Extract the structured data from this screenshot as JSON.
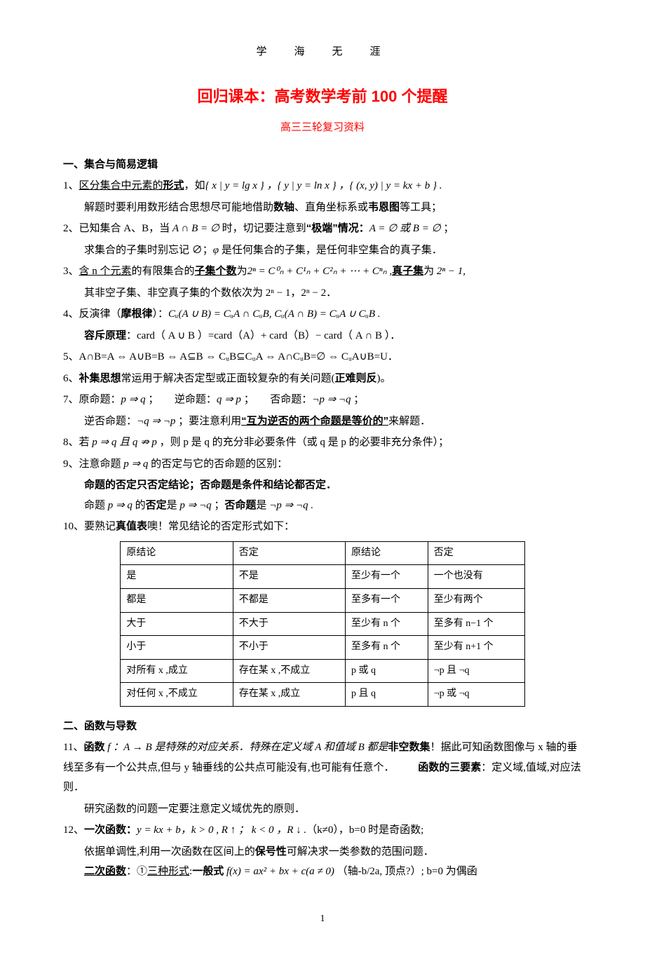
{
  "header_top": "学　海　无　涯",
  "title_prefix": "回归课本：高考数学考前 ",
  "title_num": "100",
  "title_suffix": " 个提醒",
  "subtitle": "高三三轮复习资料",
  "sec1": "一、集合与简易逻辑",
  "p1a": "1、",
  "p1b": "区分集合中元素的",
  "p1c": "形式",
  "p1d": "，如",
  "p1e": "{ x | y = lg x } ，{ y | y = ln x } ，{ (x, y) | y = kx + b } .",
  "p1f": "解题时要利用数形结合思想尽可能地借助",
  "p1g": "数轴",
  "p1h": "、直角坐标系或",
  "p1i": "韦恩图",
  "p1j": "等工具；",
  "p2a": "2、已知集合 A、B，当 ",
  "p2b": "A ∩ B = ∅",
  "p2c": " 时，切记要注意到",
  "p2d": "“极端”情况：",
  "p2e": "A = ∅ 或 B = ∅ ",
  "p2f": "；",
  "p2g": "求集合的子集时别忘记 ∅；",
  "p2h": "φ",
  "p2i": " 是任何集合的子集，是任何非空集合的真子集．",
  "p3a": "3、",
  "p3b": "含 n 个元素",
  "p3c": "的有限集合的",
  "p3d": "子集个数",
  "p3e": "为",
  "p3f": "2ⁿ = C⁰ₙ + C¹ₙ + C²ₙ + ⋯ + Cⁿₙ ,",
  "p3g": "真子集",
  "p3h": "为",
  "p3i": " 2ⁿ − 1,",
  "p3j": "其非空子集、非空真子集的个数依次为 2ⁿ − 1，2ⁿ − 2．",
  "p4a": "4、反演律（",
  "p4b": "摩根律",
  "p4c": "）：",
  "p4d": "Cᵤ(A ∪ B) = CᵤA ∩ CᵤB, Cᵤ(A ∩ B) = CᵤA ∪ CᵤB .",
  "p4e": "容斥原理",
  "p4f": "：card（ A ∪ B ）=card（A）+ card（B）− card（ A ∩ B ）．",
  "p5": "5、A∩B=A ⇔ A∪B=B ⇔ A⊆B ⇔ CᵤB⊆CᵤA ⇔ A∩CᵤB=∅ ⇔ CᵤA∪B=U．",
  "p6a": "6、",
  "p6b": "补集思想",
  "p6c": "常运用于解决否定型或正面较复杂的有关问题(",
  "p6d": "正难则反",
  "p6e": ")。",
  "p7a": "7、原命题：",
  "p7b": "p ⇒ q",
  "p7c": " ；　　逆命题：",
  "p7d": "q ⇒ p",
  "p7e": " ；　　否命题：",
  "p7f": "¬p ⇒ ¬q",
  "p7g": " ；",
  "p7h": "逆否命题：",
  "p7i": "¬q ⇒ ¬p",
  "p7j": " ；要注意利用",
  "p7k": "“互为逆否的两个命题是等价的”",
  "p7l": "来解题．",
  "p8a": "8、若 ",
  "p8b": "p ⇒ q 且 q ⇏ p",
  "p8c": " ，则 p 是 q 的充分非必要条件（或 q 是 p 的必要非充分条件）；",
  "p9a": "9、注意命题 ",
  "p9b": "p ⇒ q",
  "p9c": " 的否定与它的否命题的区别：",
  "p9d": "命题的否定只否定结论；否命题是条件和结论都否定．",
  "p9e": "命题 ",
  "p9f": "p ⇒ q",
  "p9g": " 的",
  "p9h": "否定",
  "p9i": "是 ",
  "p9j": "p ⇒ ¬q",
  "p9k": " ；",
  "p9l": "否命题",
  "p9m": "是 ",
  "p9n": "¬p ⇒ ¬q .",
  "p10a": "10、要熟记",
  "p10b": "真值表",
  "p10c": "噢！常见结论的否定形式如下：",
  "table": {
    "rows": [
      [
        "原结论",
        "否定",
        "原结论",
        "否定"
      ],
      [
        "是",
        "不是",
        "至少有一个",
        "一个也没有"
      ],
      [
        "都是",
        "不都是",
        "至多有一个",
        "至少有两个"
      ],
      [
        "大于",
        "不大于",
        "至少有 n 个",
        "至多有 n−1 个"
      ],
      [
        "小于",
        "不小于",
        "至多有 n 个",
        "至少有 n+1 个"
      ],
      [
        "对所有 x ,成立",
        "存在某 x ,不成立",
        "p 或 q",
        "¬p 且 ¬q"
      ],
      [
        "对任何 x ,不成立",
        "存在某 x ,成立",
        "p 且 q",
        "¬p 或 ¬q"
      ]
    ]
  },
  "sec2": "二、函数与导数",
  "p11a": "11、",
  "p11b": "函数",
  "p11c": " f ：A → B 是特殊的对应关系．特殊在定义域 A 和值域 B 都是",
  "p11d": "非空数集",
  "p11e": "！据此可知函数图像与 x 轴的垂线至多有一个公共点,但与 y 轴垂线的公共点可能没有,也可能有任意个．",
  "p11f": "函数的三要素",
  "p11g": "：定义域,值域,对应法则．",
  "p11h": "研究函数的问题一定要注意定义域优先的原则．",
  "p12a": "12、",
  "p12b": "一次函数：",
  "p12c": "y = kx + b，k > 0 , R ↑  ； k < 0 ，R ↓ .",
  "p12d": "（k≠0），b=0 时是奇函数;",
  "p12e": "依据单调性,利用一次函数在区间上的",
  "p12f": "保号性",
  "p12g": "可解决求一类参数的范围问题．",
  "p12h": "二次函数",
  "p12i": "：①",
  "p12j": "三种形式",
  "p12k": ":",
  "p12l": "一般式",
  "p12m": " f(x) = ax² + bx + c(a ≠ 0)",
  "p12n": " （轴-b/2a, 顶点?）; b=0 为偶函",
  "pagenum": "1"
}
